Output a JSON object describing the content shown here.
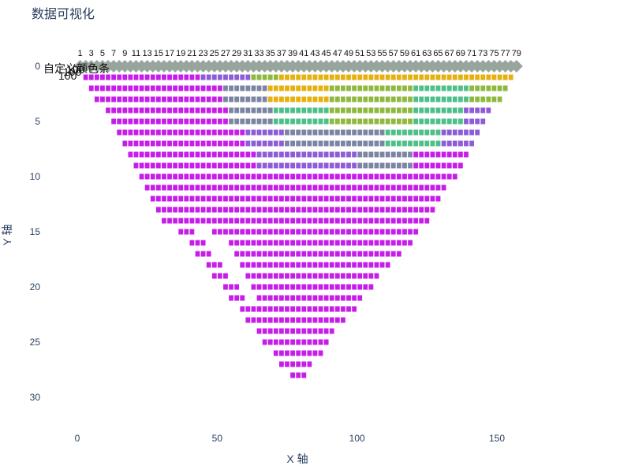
{
  "page_title": "数据可视化",
  "chart_data": {
    "type": "scatter",
    "title": "数据可视化",
    "xlabel": "X 轴",
    "ylabel": "Y 轴",
    "xlim": [
      -5,
      195
    ],
    "ylim": [
      33,
      -1
    ],
    "x_ticks": [
      0,
      50,
      100,
      150
    ],
    "y_ticks": [
      0,
      5,
      10,
      15,
      20,
      25,
      30
    ],
    "y_reversed": true,
    "marker_label_row": {
      "labels": [
        "1",
        "3",
        "5",
        "7",
        "9",
        "11",
        "13",
        "15",
        "17",
        "19",
        "21",
        "23",
        "25",
        "27",
        "29",
        "31",
        "33",
        "35",
        "37",
        "39",
        "41",
        "43",
        "45",
        "47",
        "49",
        "51",
        "53",
        "55",
        "57",
        "59",
        "61",
        "63",
        "65",
        "67",
        "69",
        "71",
        "73",
        "75",
        "77",
        "79"
      ],
      "x": [
        1,
        5,
        9,
        13,
        17,
        21,
        25,
        29,
        33,
        37,
        41,
        45,
        49,
        53,
        57,
        61,
        65,
        69,
        73,
        77,
        81,
        85,
        89,
        93,
        97,
        101,
        105,
        109,
        113,
        117,
        121,
        125,
        129,
        133,
        137,
        141,
        145,
        149,
        153,
        157
      ]
    },
    "row0": {
      "y": 0,
      "x_start": 1,
      "x_end": 157,
      "step": 2,
      "marker": "diamond",
      "color": "#98a59c"
    },
    "rows": [
      {
        "y": 1,
        "x_start": 3,
        "x_end": 155,
        "step": 2
      },
      {
        "y": 2,
        "x_start": 5,
        "x_end": 153,
        "step": 2
      },
      {
        "y": 3,
        "x_start": 7,
        "x_end": 151,
        "step": 2
      },
      {
        "y": 4,
        "x_start": 11,
        "x_end": 147,
        "step": 2
      },
      {
        "y": 5,
        "x_start": 13,
        "x_end": 145,
        "step": 2
      },
      {
        "y": 6,
        "x_start": 15,
        "x_end": 143,
        "step": 2
      },
      {
        "y": 7,
        "x_start": 17,
        "x_end": 141,
        "step": 2
      },
      {
        "y": 8,
        "x_start": 19,
        "x_end": 139,
        "step": 2
      },
      {
        "y": 9,
        "x_start": 21,
        "x_end": 137,
        "step": 2
      },
      {
        "y": 10,
        "x_start": 23,
        "x_end": 135,
        "step": 2
      },
      {
        "y": 11,
        "x_start": 25,
        "x_end": 131,
        "step": 2
      },
      {
        "y": 12,
        "x_start": 27,
        "x_end": 129,
        "step": 2
      },
      {
        "y": 13,
        "x_start": 29,
        "x_end": 127,
        "step": 2
      },
      {
        "y": 14,
        "x_start": 31,
        "x_end": 125,
        "step": 2
      },
      {
        "y": 15,
        "x_start": 37,
        "x_end": 121,
        "step": 2,
        "gaps": [
          [
            42,
            47
          ]
        ]
      },
      {
        "y": 16,
        "x_start": 41,
        "x_end": 119,
        "step": 2,
        "gaps": [
          [
            46,
            53
          ]
        ]
      },
      {
        "y": 17,
        "x_start": 43,
        "x_end": 115,
        "step": 2,
        "gaps": [
          [
            48,
            55
          ]
        ]
      },
      {
        "y": 18,
        "x_start": 47,
        "x_end": 111,
        "step": 2,
        "gaps": [
          [
            52,
            57
          ]
        ]
      },
      {
        "y": 19,
        "x_start": 49,
        "x_end": 107,
        "step": 2,
        "gaps": [
          [
            54,
            59
          ]
        ]
      },
      {
        "y": 20,
        "x_start": 53,
        "x_end": 105,
        "step": 2,
        "gaps": [
          [
            58,
            61
          ]
        ]
      },
      {
        "y": 21,
        "x_start": 55,
        "x_end": 101,
        "step": 2,
        "gaps": [
          [
            60,
            63
          ]
        ]
      },
      {
        "y": 22,
        "x_start": 59,
        "x_end": 99,
        "step": 2
      },
      {
        "y": 23,
        "x_start": 61,
        "x_end": 95,
        "step": 2
      },
      {
        "y": 24,
        "x_start": 65,
        "x_end": 91,
        "step": 2
      },
      {
        "y": 25,
        "x_start": 67,
        "x_end": 89,
        "step": 2
      },
      {
        "y": 26,
        "x_start": 71,
        "x_end": 87,
        "step": 2
      },
      {
        "y": 27,
        "x_start": 73,
        "x_end": 83,
        "step": 2
      },
      {
        "y": 28,
        "x_start": 77,
        "x_end": 81,
        "step": 2
      }
    ],
    "colors": {
      "magenta": "#c61ee8",
      "purple": "#8d5cd6",
      "slate": "#7b84a3",
      "teal": "#4dbf8a",
      "olive": "#8fb83e",
      "gold": "#e6b010",
      "gray": "#98a59c"
    },
    "colorbar_overlay": {
      "label": "自定义颜色条",
      "tick_labels": [
        "100",
        "100",
        "100"
      ]
    }
  }
}
